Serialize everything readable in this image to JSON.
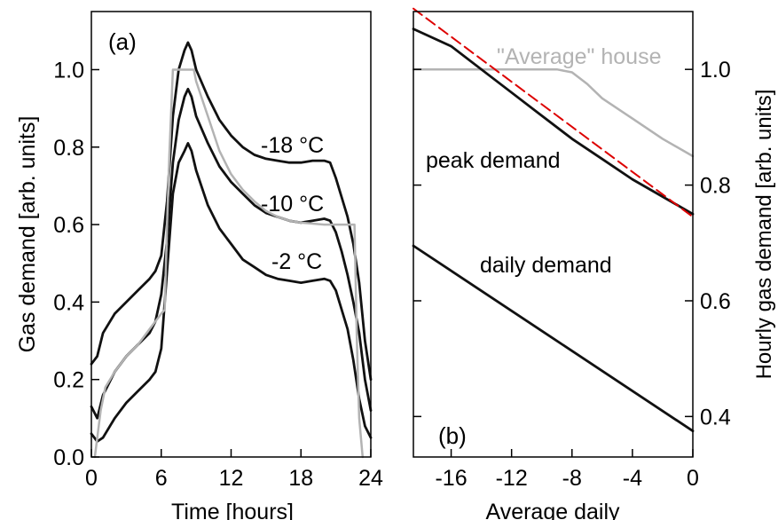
{
  "chart_data": [
    {
      "panel_label": "(a)",
      "type": "line",
      "xlabel": "Time [hours]",
      "ylabel": "Gas demand [arb. units]",
      "xlim": [
        0,
        24
      ],
      "ylim": [
        0,
        1.15
      ],
      "x_ticks": [
        "0",
        "6",
        "12",
        "18",
        "24"
      ],
      "y_ticks": [
        "0.0",
        "0.2",
        "0.4",
        "0.6",
        "0.8",
        "1.0"
      ],
      "annotations": [
        {
          "text": "-18 °C",
          "series": 0
        },
        {
          "text": "-10 °C",
          "series": 1
        },
        {
          "text": "-2 °C",
          "series": 2
        }
      ],
      "series": [
        {
          "color": "#111111",
          "x": [
            0,
            0.5,
            1,
            2,
            3,
            4,
            5,
            5.5,
            6,
            6.5,
            7,
            7.5,
            8,
            8.3,
            8.6,
            9,
            10,
            11,
            12,
            13,
            14,
            15,
            16,
            17,
            18,
            19,
            20,
            20.5,
            21,
            21.5,
            22,
            22.5,
            23,
            23.5,
            24
          ],
          "y": [
            0.24,
            0.26,
            0.32,
            0.37,
            0.4,
            0.43,
            0.46,
            0.48,
            0.52,
            0.66,
            0.88,
            1.0,
            1.05,
            1.07,
            1.05,
            1.0,
            0.93,
            0.87,
            0.83,
            0.8,
            0.78,
            0.77,
            0.765,
            0.76,
            0.76,
            0.765,
            0.765,
            0.76,
            0.72,
            0.67,
            0.62,
            0.55,
            0.45,
            0.3,
            0.2
          ]
        },
        {
          "color": "#111111",
          "x": [
            0,
            0.5,
            1,
            2,
            3,
            4,
            5,
            5.5,
            6,
            6.5,
            7,
            7.5,
            8,
            8.3,
            8.6,
            9,
            10,
            11,
            12,
            13,
            14,
            15,
            16,
            17,
            18,
            19,
            20,
            20.5,
            21,
            21.5,
            22,
            22.5,
            23,
            23.5,
            24
          ],
          "y": [
            0.13,
            0.1,
            0.16,
            0.22,
            0.26,
            0.29,
            0.32,
            0.35,
            0.42,
            0.56,
            0.76,
            0.87,
            0.93,
            0.95,
            0.93,
            0.88,
            0.81,
            0.75,
            0.71,
            0.68,
            0.65,
            0.63,
            0.62,
            0.61,
            0.605,
            0.61,
            0.615,
            0.61,
            0.58,
            0.53,
            0.47,
            0.4,
            0.32,
            0.2,
            0.12
          ]
        },
        {
          "color": "#111111",
          "x": [
            0,
            0.5,
            1,
            2,
            3,
            4,
            5,
            5.5,
            6,
            6.5,
            7,
            7.5,
            8,
            8.3,
            8.6,
            9,
            10,
            11,
            12,
            13,
            14,
            15,
            16,
            17,
            18,
            19,
            20,
            20.5,
            21,
            21.5,
            22,
            22.5,
            23,
            23.5,
            24
          ],
          "y": [
            0.06,
            0.04,
            0.05,
            0.1,
            0.14,
            0.17,
            0.2,
            0.22,
            0.28,
            0.48,
            0.68,
            0.76,
            0.79,
            0.81,
            0.79,
            0.74,
            0.65,
            0.59,
            0.55,
            0.51,
            0.49,
            0.47,
            0.46,
            0.455,
            0.45,
            0.455,
            0.46,
            0.455,
            0.43,
            0.38,
            0.33,
            0.25,
            0.15,
            0.08,
            0.05
          ]
        },
        {
          "color": "#b3b3b3",
          "x": [
            0.3,
            0.8,
            1.2,
            2,
            3,
            4,
            5,
            6,
            6.3,
            6.5,
            6.7,
            7,
            8,
            8.8,
            9,
            10,
            11,
            12,
            13,
            14,
            15,
            16,
            17,
            18,
            20,
            22,
            22.6,
            22.8,
            23,
            23.3
          ],
          "y": [
            0.0,
            0.12,
            0.18,
            0.22,
            0.26,
            0.29,
            0.33,
            0.37,
            0.38,
            0.6,
            0.78,
            1.0,
            1.0,
            1.0,
            0.97,
            0.88,
            0.79,
            0.73,
            0.69,
            0.66,
            0.635,
            0.62,
            0.61,
            0.605,
            0.6,
            0.6,
            0.6,
            0.3,
            0.1,
            0.0
          ]
        }
      ]
    },
    {
      "panel_label": "(b)",
      "type": "line",
      "xlabel": "Average daily",
      "ylabel": "Hourly gas demand [arb. units]",
      "xlim": [
        -18.5,
        0
      ],
      "ylim": [
        0.33,
        1.1
      ],
      "x_ticks": [
        "-16",
        "-12",
        "-8",
        "-4",
        "0"
      ],
      "y_ticks": [
        "0.4",
        "0.6",
        "0.8",
        "1.0"
      ],
      "annotations": [
        {
          "text": "\"Average\" house",
          "series": 0
        },
        {
          "text": "peak demand",
          "series": 1
        },
        {
          "text": "daily demand",
          "series": 3
        }
      ],
      "series": [
        {
          "color": "#b3b3b3",
          "x": [
            -18.5,
            -16,
            -12,
            -9,
            -8,
            -7,
            -6,
            -4,
            -2,
            0
          ],
          "y": [
            1.0,
            1.0,
            1.0,
            1.0,
            0.995,
            0.975,
            0.95,
            0.915,
            0.88,
            0.85
          ]
        },
        {
          "color": "#111111",
          "x": [
            -18.5,
            -16,
            -14,
            -12,
            -10,
            -8,
            -6,
            -4,
            -2,
            0
          ],
          "y": [
            1.07,
            1.04,
            1.0,
            0.96,
            0.92,
            0.88,
            0.845,
            0.81,
            0.78,
            0.75
          ]
        },
        {
          "color": "#dd0000",
          "dashed": true,
          "x": [
            -18.5,
            0
          ],
          "y": [
            1.105,
            0.745
          ]
        },
        {
          "color": "#111111",
          "x": [
            -18.5,
            0
          ],
          "y": [
            0.695,
            0.375
          ]
        }
      ]
    }
  ]
}
